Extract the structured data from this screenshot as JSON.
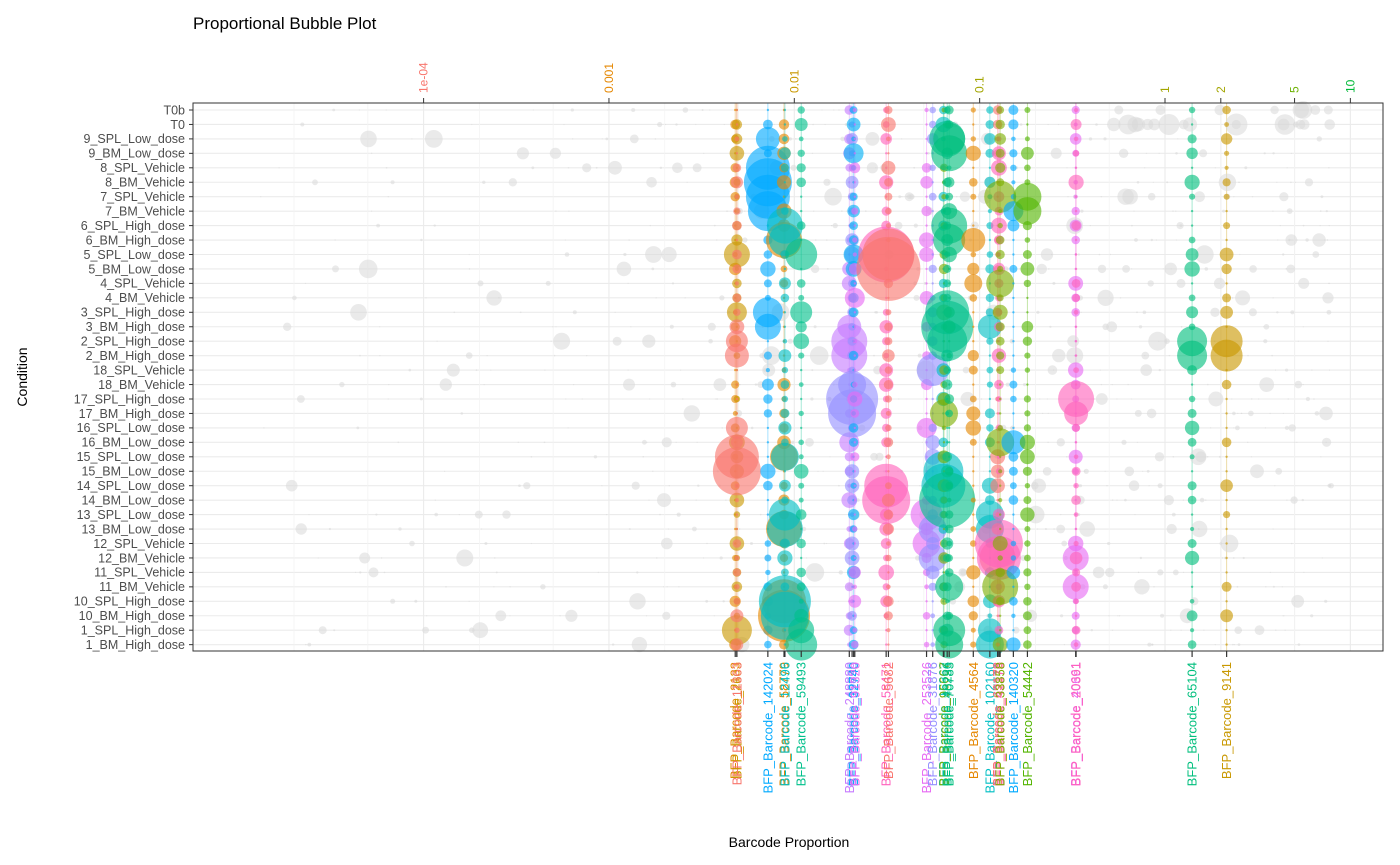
{
  "colors": {
    "background_points": "#d9d9d9",
    "grid": "#ebebeb",
    "panel_border": "#333333"
  },
  "chart_data": {
    "type": "scatter",
    "title": "Proportional Bubble Plot",
    "xlabel": "Barcode Proportion",
    "ylabel": "Condition",
    "x_scale": "log10",
    "xlim": [
      5.7e-06,
      15
    ],
    "grid": true,
    "legend": "none",
    "top_axis_ticks": [
      {
        "label": "1e-04",
        "value": 0.0001,
        "color": "#F8766D"
      },
      {
        "label": "0.001",
        "value": 0.001,
        "color": "#E58700"
      },
      {
        "label": "0.01",
        "value": 0.01,
        "color": "#C99800"
      },
      {
        "label": "0.1",
        "value": 0.1,
        "color": "#A3A500"
      },
      {
        "label": "1",
        "value": 1,
        "color": "#A3A500"
      },
      {
        "label": "2",
        "value": 2,
        "color": "#A3A500"
      },
      {
        "label": "5",
        "value": 5,
        "color": "#6BB100"
      },
      {
        "label": "10",
        "value": 10,
        "color": "#00BA38"
      }
    ],
    "conditions": [
      "T0b",
      "T0",
      "9_SPL_Low_dose",
      "9_BM_Low_dose",
      "8_SPL_Vehicle",
      "8_BM_Vehicle",
      "7_SPL_Vehicle",
      "7_BM_Vehicle",
      "6_SPL_High_dose",
      "6_BM_High_dose",
      "5_SPL_Low_dose",
      "5_BM_Low_dose",
      "4_SPL_Vehicle",
      "4_BM_Vehicle",
      "3_SPL_High_dose",
      "3_BM_High_dose",
      "2_SPL_High_dose",
      "2_BM_High_dose",
      "18_SPL_Vehicle",
      "18_BM_Vehicle",
      "17_SPL_High_dose",
      "17_BM_High_dose",
      "16_SPL_Low_dose",
      "16_BM_Low_dose",
      "15_SPL_Low_dose",
      "15_BM_Low_dose",
      "14_SPL_Low_dose",
      "14_BM_Low_dose",
      "13_SPL_Low_dose",
      "13_BM_Low_dose",
      "12_SPL_Vehicle",
      "12_BM_Vehicle",
      "11_SPL_Vehicle",
      "11_BM_Vehicle",
      "10_SPL_High_dose",
      "10_BM_High_dose",
      "1_SPL_High_dose",
      "1_BM_High_dose"
    ],
    "barcodes": [
      {
        "name": "BFP_Barcode_2133",
        "color": "#E58700",
        "x": 0.0048
      },
      {
        "name": "BFP_Barcode_2603",
        "color": "#C99800",
        "x": 0.0049,
        "big": {
          "1_SPL_High_dose": 15,
          "5_SPL_Low_dose": 13,
          "3_SPL_High_dose": 10
        }
      },
      {
        "name": "BFP_Barcode_11363",
        "color": "#F8766D",
        "x": 0.0049,
        "big": {
          "15_SPL_Low_dose": 22,
          "15_BM_Low_dose": 24,
          "2_SPL_High_dose": 11,
          "2_BM_High_dose": 12,
          "16_SPL_Low_dose": 11
        }
      },
      {
        "name": "BFP_Barcode_142024",
        "color": "#00A9FF",
        "x": 0.0072,
        "big": {
          "8_SPL_Vehicle": 22,
          "8_BM_Vehicle": 24,
          "7_SPL_Vehicle": 22,
          "7_BM_Vehicle": 20,
          "3_SPL_High_dose": 15,
          "3_BM_High_dose": 13,
          "9_SPL_Low_dose": 12
        }
      },
      {
        "name": "BFP_Barcode_58779",
        "color": "#E58700",
        "x": 0.0088,
        "big": {
          "10_BM_High_dose": 26,
          "10_SPL_High_dose": 22,
          "13_BM_Low_dose": 18,
          "6_BM_High_dose": 18,
          "15_SPL_Low_dose": 14
        }
      },
      {
        "name": "BFP_Barcode_12496",
        "color": "#00BFC4",
        "x": 0.0089,
        "big": {
          "10_SPL_High_dose": 26,
          "10_BM_High_dose": 24,
          "13_SPL_Low_dose": 16,
          "13_BM_Low_dose": 18,
          "6_SPL_High_dose": 18,
          "6_BM_High_dose": 16,
          "15_SPL_Low_dose": 14
        }
      },
      {
        "name": "BFP_Barcode_59493",
        "color": "#00C08B",
        "x": 0.0109,
        "big": {
          "5_SPL_Low_dose": 16,
          "1_BM_High_dose": 16,
          "1_SPL_High_dose": 13,
          "3_SPL_High_dose": 11
        }
      },
      {
        "name": "BFP_Barcode_248880",
        "color": "#C77CFF",
        "x": 0.0198,
        "big": {
          "2_SPL_High_dose": 18,
          "2_BM_High_dose": 18,
          "3_BM_High_dose": 12,
          "16_BM_Low_dose": 10
        }
      },
      {
        "name": "BFP_Barcode_19835",
        "color": "#9590FF",
        "x": 0.0205,
        "big": {
          "17_SPL_High_dose": 26,
          "17_BM_High_dose": 24,
          "18_BM_Vehicle": 14
        }
      },
      {
        "name": "BFP_Barcode_32740",
        "color": "#00B0F6",
        "x": 0.0209,
        "big": {
          "5_SPL_Low_dose": 10,
          "9_BM_Low_dose": 10
        }
      },
      {
        "name": "BFP_Barcode_91320",
        "color": "#E76BF3",
        "x": 0.0212,
        "big": {
          "4_BM_Vehicle": 10
        }
      },
      {
        "name": "BFP_Barcode_58471",
        "color": "#FF62BC",
        "x": 0.0313,
        "big": {
          "14_SPL_Low_dose": 22,
          "14_BM_Low_dose": 24,
          "5_SPL_Low_dose": 28
        }
      },
      {
        "name": "BFP_Barcode_5682",
        "color": "#F8766D",
        "x": 0.0322,
        "big": {
          "5_BM_Low_dose": 32,
          "5_SPL_Low_dose": 26
        }
      },
      {
        "name": "BFP_Barcode_253526",
        "color": "#E76BF3",
        "x": 0.0517,
        "big": {
          "13_SPL_Low_dose": 16,
          "12_SPL_Vehicle": 14,
          "16_SPL_Low_dose": 10
        }
      },
      {
        "name": "BFP_Barcode_31876",
        "color": "#9590FF",
        "x": 0.0558,
        "big": {
          "18_SPL_Vehicle": 16,
          "12_BM_Vehicle": 14,
          "13_BM_Low_dose": 14
        }
      },
      {
        "name": "BFP_Barcode_15362",
        "color": "#00BFC4",
        "x": 0.0637,
        "big": {
          "15_BM_Low_dose": 20,
          "14_SPL_Low_dose": 22
        }
      },
      {
        "name": "BFP_Barcode_96667",
        "color": "#7CAE00",
        "x": 0.0642,
        "big": {
          "17_BM_High_dose": 14
        }
      },
      {
        "name": "BFP_Barcode_48236",
        "color": "#00C08B",
        "x": 0.0668,
        "big": {
          "2_SPL_High_dose": 20,
          "3_BM_High_dose": 26,
          "3_SPL_High_dose": 22,
          "14_BM_Low_dose": 28,
          "9_SPL_Low_dose": 18
        }
      },
      {
        "name": "BFP_Barcode_70783",
        "color": "#00BF7D",
        "x": 0.0685,
        "big": {
          "9_BM_Low_dose": 18,
          "9_SPL_Low_dose": 16,
          "6_SPL_High_dose": 18,
          "6_BM_High_dose": 16,
          "11_BM_Vehicle": 14,
          "1_SPL_High_dose": 16,
          "1_BM_High_dose": 14
        }
      },
      {
        "name": "BFP_Barcode_4564",
        "color": "#E58700",
        "x": 0.0924,
        "big": {
          "6_BM_High_dose": 12,
          "4_SPL_Vehicle": 9
        }
      },
      {
        "name": "BFP_Barcode_102160",
        "color": "#00BFC4",
        "x": 0.1135,
        "big": {
          "13_SPL_Low_dose": 14,
          "13_BM_Low_dose": 14,
          "1_BM_High_dose": 14,
          "1_SPL_High_dose": 12,
          "3_BM_High_dose": 12
        }
      },
      {
        "name": "BFP_Barcode_69178",
        "color": "#F8766D",
        "x": 0.125,
        "big": {
          "12_BM_Vehicle": 18
        }
      },
      {
        "name": "BFP_Barcode_42375",
        "color": "#FF62BC",
        "x": 0.127,
        "big": {
          "12_SPL_Vehicle": 24,
          "12_BM_Vehicle": 22
        }
      },
      {
        "name": "BFP_Barcode_33858",
        "color": "#7CAE00",
        "x": 0.129,
        "big": {
          "11_BM_Vehicle": 18,
          "7_SPL_Vehicle": 16,
          "4_SPL_Vehicle": 14,
          "16_BM_Low_dose": 14
        }
      },
      {
        "name": "BFP_Barcode_140320",
        "color": "#00A9FF",
        "x": 0.152,
        "big": {
          "16_BM_Low_dose": 12,
          "7_BM_Vehicle": 10
        }
      },
      {
        "name": "BFP_Barcode_54442",
        "color": "#53B400",
        "x": 0.181,
        "big": {
          "7_SPL_Vehicle": 14,
          "7_BM_Vehicle": 14
        }
      },
      {
        "name": "BFP_Barcode_40661",
        "color": "#E76BF3",
        "x": 0.3297,
        "big": {
          "12_BM_Vehicle": 13,
          "11_BM_Vehicle": 13
        }
      },
      {
        "name": "BFP_Barcode_20391",
        "color": "#FF62BC",
        "x": 0.3313,
        "big": {
          "17_SPL_High_dose": 18,
          "17_BM_High_dose": 12
        }
      },
      {
        "name": "BFP_Barcode_65104",
        "color": "#00BF7D",
        "x": 1.4,
        "big": {
          "2_SPL_High_dose": 15,
          "2_BM_High_dose": 15
        }
      },
      {
        "name": "BFP_Barcode_9141",
        "color": "#C99800",
        "x": 2.15,
        "big": {
          "2_SPL_High_dose": 16,
          "2_BM_High_dose": 16
        }
      }
    ]
  }
}
